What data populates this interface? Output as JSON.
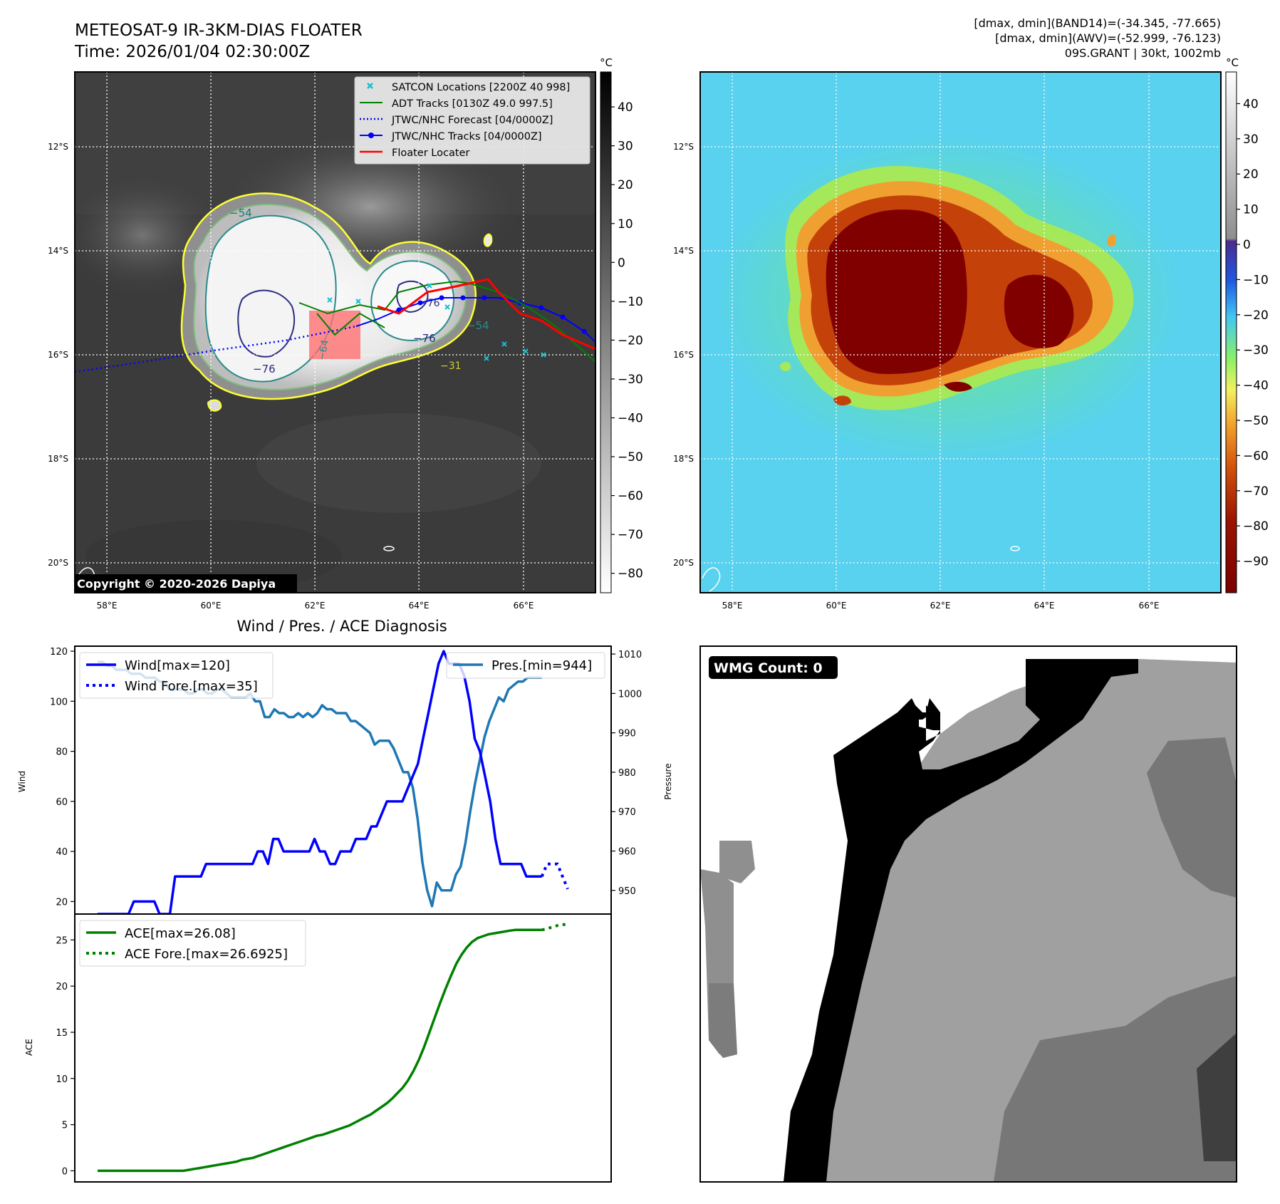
{
  "header": {
    "title_line1": "METEOSAT-9 IR-3KM-DIAS FLOATER",
    "title_line2": "Time: 2026/01/04 02:30:00Z",
    "right_line1": "[dmax, dmin](BAND14)=(-34.345, -77.665)",
    "right_line2": "[dmax, dmin](AWV)=(-52.999, -76.123)",
    "right_line3": "09S.GRANT | 30kt, 1002mb"
  },
  "ir_map": {
    "lat_labels": [
      "12°S",
      "14°S",
      "16°S",
      "18°S",
      "20°S"
    ],
    "lon_labels": [
      "58°E",
      "60°E",
      "62°E",
      "64°E",
      "66°E"
    ],
    "colorbar_unit": "°C",
    "colorbar_ticks": [
      "40",
      "30",
      "20",
      "10",
      "0",
      "−10",
      "−20",
      "−30",
      "−40",
      "−50",
      "−60",
      "−70",
      "−80"
    ],
    "contour_labels": [
      "−54",
      "−76",
      "−64",
      "−76",
      "−54",
      "−76",
      "−31"
    ],
    "copyright": "Copyright © 2020-2026 Dapiya",
    "legend": [
      {
        "label": "SATCON Locations [2200Z 40 998]",
        "color": "#17becf",
        "style": "x"
      },
      {
        "label": "ADT Tracks [0130Z 49.0 997.5]",
        "color": "#008000",
        "style": "solid"
      },
      {
        "label": "JTWC/NHC Forecast [04/0000Z]",
        "color": "#0000ff",
        "style": "dotted"
      },
      {
        "label": "JTWC/NHC Tracks [04/0000Z]",
        "color": "#0000ff",
        "style": "dot-line"
      },
      {
        "label": "Floater Locater",
        "color": "#ff0000",
        "style": "solid"
      }
    ]
  },
  "awv_map": {
    "lat_labels": [
      "12°S",
      "14°S",
      "16°S",
      "18°S",
      "20°S"
    ],
    "lon_labels": [
      "58°E",
      "60°E",
      "62°E",
      "64°E",
      "66°E"
    ],
    "colorbar_unit": "°C",
    "colorbar_ticks": [
      "40",
      "30",
      "20",
      "10",
      "0",
      "−10",
      "−20",
      "−30",
      "−40",
      "−50",
      "−60",
      "−70",
      "−80",
      "−90"
    ]
  },
  "diagnosis": {
    "title": "Wind / Pres. / ACE Diagnosis",
    "wind_ylabel": "Wind",
    "pres_ylabel": "Pressure",
    "ace_ylabel": "ACE",
    "wind_ticks": [
      "20",
      "40",
      "60",
      "80",
      "100",
      "120"
    ],
    "pres_ticks": [
      "950",
      "960",
      "970",
      "980",
      "990",
      "1000",
      "1010"
    ],
    "ace_ticks": [
      "0",
      "5",
      "10",
      "15",
      "20",
      "25"
    ],
    "legend_wind": "Wind[max=120]",
    "legend_wind_fore": "Wind Fore.[max=35]",
    "legend_pres": "Pres.[min=944]",
    "legend_ace": "ACE[max=26.08]",
    "legend_ace_fore": "ACE Fore.[max=26.6925]"
  },
  "wmg": {
    "label": "WMG Count: 0"
  },
  "colors": {
    "wind": "#0000ff",
    "pressure": "#1f77b4",
    "ace": "#008000",
    "track_red": "#ff0000",
    "satcon": "#17becf"
  },
  "chart_data": [
    {
      "type": "line",
      "title": "Wind / Pres. / ACE Diagnosis",
      "ylabel": "Wind",
      "ylim": [
        15,
        122
      ],
      "series": [
        {
          "name": "Wind[max=120]",
          "values": [
            15,
            15,
            15,
            15,
            15,
            15,
            15,
            20,
            20,
            20,
            20,
            20,
            15,
            15,
            15,
            30,
            30,
            30,
            30,
            30,
            30,
            35,
            35,
            35,
            35,
            35,
            35,
            35,
            35,
            35,
            35,
            40,
            40,
            35,
            45,
            45,
            40,
            40,
            40,
            40,
            40,
            40,
            45,
            40,
            40,
            35,
            35,
            40,
            40,
            40,
            45,
            45,
            45,
            50,
            50,
            55,
            60,
            60,
            60,
            60,
            65,
            70,
            75,
            85,
            95,
            105,
            115,
            120,
            115,
            115,
            115,
            110,
            100,
            85,
            80,
            70,
            60,
            45,
            35,
            35,
            35,
            35,
            35,
            30,
            30,
            30,
            30
          ]
        },
        {
          "name": "Wind Fore.[max=35]",
          "values": [
            30,
            35,
            35,
            35,
            30,
            25
          ]
        }
      ]
    },
    {
      "type": "line",
      "ylabel": "Pressure",
      "ylim": [
        944,
        1012
      ],
      "series": [
        {
          "name": "Pres.[min=944]",
          "values": [
            1008,
            1008,
            1007,
            1007,
            1006,
            1006,
            1006,
            1005,
            1005,
            1005,
            1004,
            1004,
            1004,
            1003,
            1003,
            1001,
            1001,
            1001,
            1001,
            1000,
            1000,
            1001,
            1001,
            1000,
            1000,
            1001,
            1001,
            1000,
            999,
            999,
            999,
            999,
            1000,
            998,
            998,
            994,
            994,
            996,
            995,
            995,
            994,
            994,
            995,
            994,
            995,
            994,
            995,
            997,
            996,
            996,
            995,
            995,
            995,
            993,
            993,
            992,
            991,
            990,
            987,
            988,
            988,
            988,
            986,
            983,
            980,
            980,
            976,
            968,
            957,
            950,
            946,
            952,
            950,
            950,
            950,
            954,
            956,
            962,
            970,
            977,
            983,
            989,
            993,
            996,
            999,
            998,
            1001,
            1002,
            1003,
            1003,
            1004,
            1004,
            1004,
            1004
          ]
        }
      ]
    },
    {
      "type": "line",
      "ylabel": "ACE",
      "ylim": [
        -1.2,
        27.8
      ],
      "series": [
        {
          "name": "ACE[max=26.08]",
          "values": [
            0,
            0,
            0,
            0,
            0,
            0,
            0,
            0,
            0,
            0,
            0,
            0,
            0,
            0,
            0,
            0,
            0,
            0.1,
            0.2,
            0.3,
            0.4,
            0.5,
            0.6,
            0.7,
            0.8,
            0.9,
            1.0,
            1.2,
            1.3,
            1.4,
            1.6,
            1.8,
            2.0,
            2.2,
            2.4,
            2.6,
            2.8,
            3.0,
            3.2,
            3.4,
            3.6,
            3.8,
            3.9,
            4.1,
            4.3,
            4.5,
            4.7,
            4.9,
            5.2,
            5.5,
            5.8,
            6.1,
            6.5,
            6.9,
            7.3,
            7.8,
            8.4,
            9.0,
            9.8,
            10.8,
            12.0,
            13.4,
            15.0,
            16.6,
            18.2,
            19.7,
            21.1,
            22.4,
            23.4,
            24.2,
            24.8,
            25.2,
            25.4,
            25.6,
            25.7,
            25.8,
            25.9,
            26.0,
            26.08,
            26.08,
            26.08,
            26.08,
            26.08,
            26.08
          ]
        },
        {
          "name": "ACE Fore.[max=26.6925]",
          "values": [
            26.08,
            26.2,
            26.4,
            26.55,
            26.65,
            26.6925
          ]
        }
      ]
    }
  ]
}
